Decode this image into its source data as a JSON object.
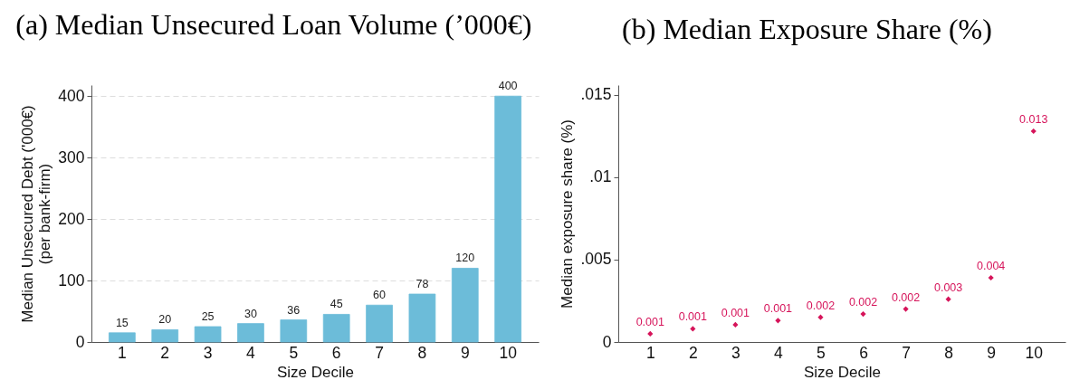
{
  "chart_data": [
    {
      "type": "bar",
      "title": "(a) Median Unsecured Loan Volume (’000€)",
      "xlabel": "Size Decile",
      "ylabel": "Median Unsecured Debt ('000€)\n(per bank-firm)",
      "categories": [
        "1",
        "2",
        "3",
        "4",
        "5",
        "6",
        "7",
        "8",
        "9",
        "10"
      ],
      "values": [
        15,
        20,
        25,
        30,
        36,
        45,
        60,
        78,
        120,
        400
      ],
      "color": "#6cbcd9",
      "ylim": [
        0,
        418
      ],
      "yticks": [
        0,
        100,
        200,
        300,
        400
      ],
      "grid": "y",
      "data_labels": true
    },
    {
      "type": "scatter",
      "title": "(b) Median Exposure Share (%)",
      "xlabel": "Size Decile",
      "ylabel": "Median exposure share (%)",
      "categories": [
        "1",
        "2",
        "3",
        "4",
        "5",
        "6",
        "7",
        "8",
        "9",
        "10"
      ],
      "values": [
        0.0005,
        0.0008,
        0.00105,
        0.0013,
        0.0015,
        0.0017,
        0.002,
        0.0026,
        0.0039,
        0.0128
      ],
      "value_labels": [
        "0.001",
        "0.001",
        "0.001",
        "0.001",
        "0.002",
        "0.002",
        "0.002",
        "0.003",
        "0.004",
        "0.013"
      ],
      "color": "#d6145a",
      "marker": "diamond",
      "ylim": [
        0,
        0.0156
      ],
      "yticks": [
        0,
        {
          "value": 0.005,
          "label": ".005"
        },
        {
          "value": 0.01,
          "label": ".01"
        },
        {
          "value": 0.015,
          "label": ".015"
        }
      ]
    }
  ]
}
